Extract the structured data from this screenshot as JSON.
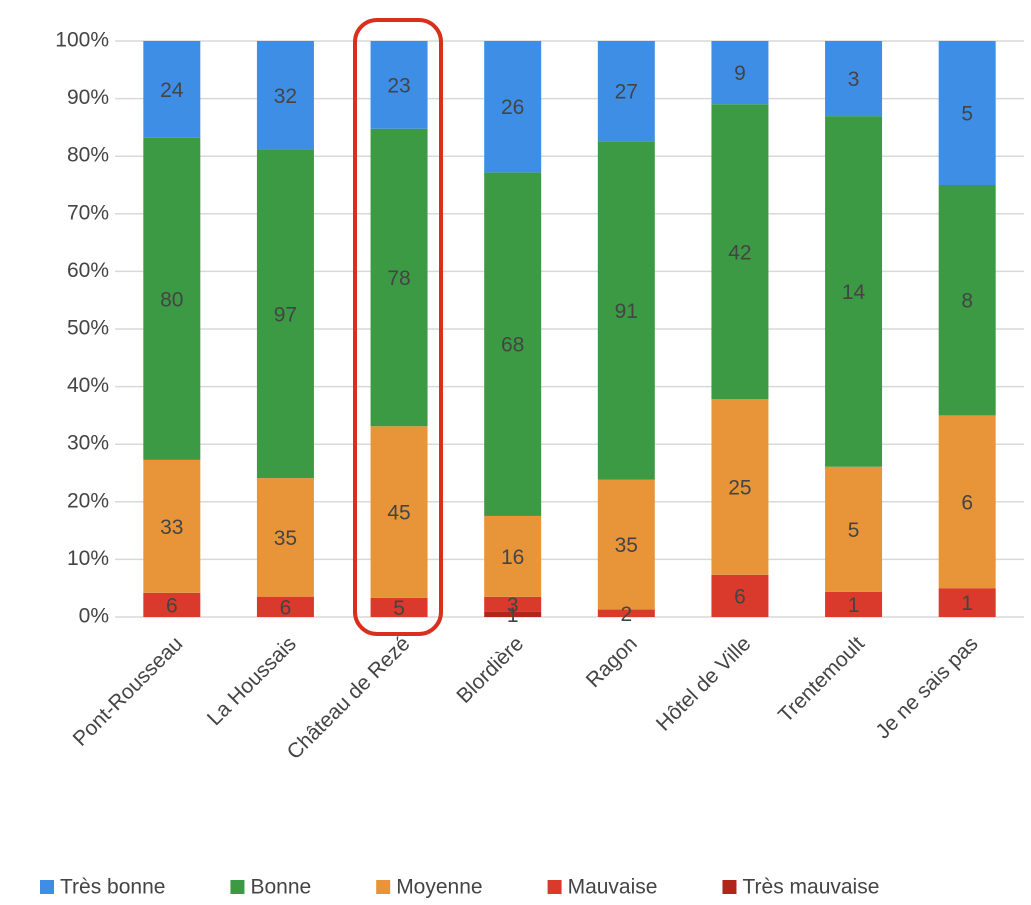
{
  "chart_data": {
    "type": "bar",
    "stacked": "percent",
    "categories": [
      "Pont-Rousseau",
      "La Houssais",
      "Château de Rezé",
      "Blordière",
      "Ragon",
      "Hôtel de Ville",
      "Trentemoult",
      "Je ne sais pas"
    ],
    "series": [
      {
        "name": "Très mauvaise",
        "color": "#b0261c",
        "values": [
          null,
          null,
          null,
          1,
          null,
          null,
          null,
          null
        ]
      },
      {
        "name": "Mauvaise",
        "color": "#d93a2b",
        "values": [
          6,
          6,
          5,
          3,
          2,
          6,
          1,
          1
        ]
      },
      {
        "name": "Moyenne",
        "color": "#e8953a",
        "values": [
          33,
          35,
          45,
          16,
          35,
          25,
          5,
          6
        ]
      },
      {
        "name": "Bonne",
        "color": "#3c9a45",
        "values": [
          80,
          97,
          78,
          68,
          91,
          42,
          14,
          8
        ]
      },
      {
        "name": "Très bonne",
        "color": "#3e8ee6",
        "values": [
          24,
          32,
          23,
          26,
          27,
          9,
          3,
          5
        ]
      }
    ],
    "legend_order": [
      4,
      3,
      2,
      1,
      0
    ],
    "ylim": [
      0,
      100
    ],
    "yticks": [
      {
        "value": 0,
        "label": "0%"
      },
      {
        "value": 10,
        "label": "10%"
      },
      {
        "value": 20,
        "label": "20%"
      },
      {
        "value": 30,
        "label": "30%"
      },
      {
        "value": 40,
        "label": "40%"
      },
      {
        "value": 50,
        "label": "50%"
      },
      {
        "value": 60,
        "label": "60%"
      },
      {
        "value": 70,
        "label": "70%"
      },
      {
        "value": 80,
        "label": "80%"
      },
      {
        "value": 90,
        "label": "90%"
      },
      {
        "value": 100,
        "label": "100%"
      }
    ],
    "grid": true,
    "legend": "bottom"
  }
}
